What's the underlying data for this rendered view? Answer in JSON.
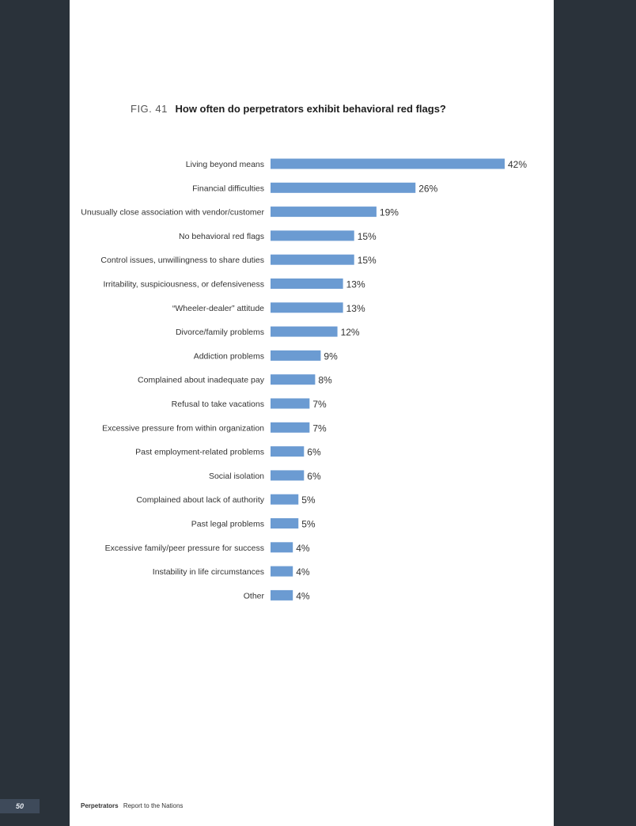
{
  "figure": {
    "number": "FIG. 41",
    "question": "How often do perpetrators exhibit behavioral red flags?"
  },
  "chart_data": {
    "type": "bar",
    "orientation": "horizontal",
    "title": "How often do perpetrators exhibit behavioral red flags?",
    "bar_color": "#6b9bd2",
    "value_suffix": "%",
    "xlim": [
      0,
      42
    ],
    "categories": [
      "Living beyond means",
      "Financial difficulties",
      "Unusually close association with vendor/customer",
      "No behavioral red flags",
      "Control issues, unwillingness to share duties",
      "Irritability, suspiciousness, or defensiveness",
      "“Wheeler-dealer” attitude",
      "Divorce/family problems",
      "Addiction problems",
      "Complained about inadequate pay",
      "Refusal to take vacations",
      "Excessive pressure from within organization",
      "Past employment-related problems",
      "Social isolation",
      "Complained about lack of authority",
      "Past legal problems",
      "Excessive family/peer pressure for success",
      "Instability in life circumstances",
      "Other"
    ],
    "values": [
      42,
      26,
      19,
      15,
      15,
      13,
      13,
      12,
      9,
      8,
      7,
      7,
      6,
      6,
      5,
      5,
      4,
      4,
      4
    ]
  },
  "footer": {
    "page_number": "50",
    "section": "Perpetrators",
    "report": "Report to the Nations"
  }
}
